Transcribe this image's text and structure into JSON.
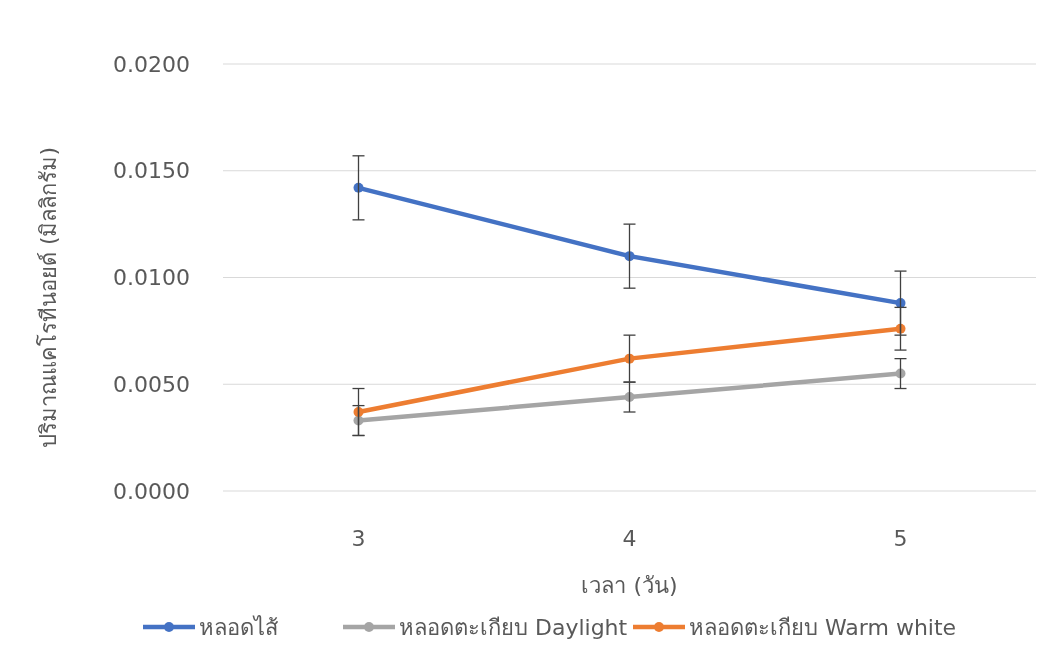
{
  "chart_data": {
    "type": "line",
    "xlabel": "เวลา (วัน)",
    "ylabel": "ปริมาณแคโรทีนอยด์ (มิลลิกรัม)",
    "categories": [
      "3",
      "4",
      "5"
    ],
    "ylim": [
      0,
      0.02
    ],
    "yticks": [
      {
        "value": 0,
        "label": "0.0000"
      },
      {
        "value": 0.005,
        "label": "0.0050"
      },
      {
        "value": 0.01,
        "label": "0.0100"
      },
      {
        "value": 0.015,
        "label": "0.0150"
      },
      {
        "value": 0.02,
        "label": "0.0200"
      }
    ],
    "grid": "y",
    "legend": "bottom",
    "marker": "circle",
    "line_style": "solid",
    "series": [
      {
        "name": "หลอดไส้",
        "color": "#4472c4",
        "values": [
          0.0142,
          0.011,
          0.0088
        ],
        "errors": [
          0.0015,
          0.0015,
          0.0015
        ]
      },
      {
        "name": "หลอดตะเกียบ Daylight",
        "color": "#a5a5a5",
        "values": [
          0.0033,
          0.0044,
          0.0055
        ],
        "errors": [
          0.0007,
          0.0007,
          0.0007
        ]
      },
      {
        "name": "หลอดตะเกียบ Warm white",
        "color": "#ed7d31",
        "values": [
          0.0037,
          0.0062,
          0.0076
        ],
        "errors": [
          0.0011,
          0.0011,
          0.001
        ]
      }
    ]
  }
}
